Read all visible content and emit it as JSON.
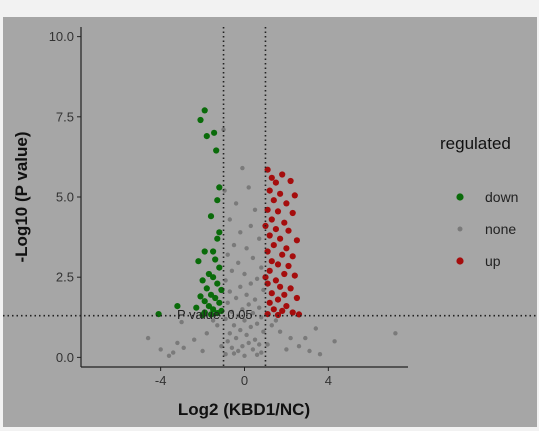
{
  "chart_data": {
    "type": "scatter",
    "title": "",
    "xlabel": "Log2 (KBD1/NC)",
    "ylabel": "-Log10 (P value)",
    "xlim": [
      -7.8,
      7.8
    ],
    "ylim": [
      -0.3,
      10.3
    ],
    "xticks": [
      -4,
      0,
      4
    ],
    "yticks": [
      0.0,
      2.5,
      5.0,
      7.5,
      10.0
    ],
    "xtick_labels": [
      "-4",
      "0",
      "4"
    ],
    "ytick_labels": [
      "0.0",
      "2.5",
      "5.0",
      "7.5",
      "10.0"
    ],
    "grid": false,
    "legend_title": "regulated",
    "legend_position": "right",
    "thresholds": {
      "x": [
        -1,
        1
      ],
      "y": 1.3
    },
    "annotation": "P value: 0.05",
    "series": [
      {
        "name": "down",
        "color": "#0a6b0a",
        "points": [
          [
            -1.9,
            7.7
          ],
          [
            -2.1,
            7.4
          ],
          [
            -1.8,
            6.9
          ],
          [
            -1.45,
            7.0
          ],
          [
            -1.35,
            6.45
          ],
          [
            -1.2,
            5.3
          ],
          [
            -1.3,
            4.9
          ],
          [
            -1.6,
            4.4
          ],
          [
            -1.2,
            3.9
          ],
          [
            -1.3,
            3.7
          ],
          [
            -1.9,
            3.3
          ],
          [
            -1.5,
            3.3
          ],
          [
            -2.2,
            3.0
          ],
          [
            -1.4,
            3.05
          ],
          [
            -1.2,
            2.8
          ],
          [
            -1.7,
            2.6
          ],
          [
            -2.0,
            2.4
          ],
          [
            -1.5,
            2.5
          ],
          [
            -1.3,
            2.3
          ],
          [
            -1.8,
            2.15
          ],
          [
            -1.1,
            2.1
          ],
          [
            -1.6,
            1.95
          ],
          [
            -2.1,
            1.9
          ],
          [
            -1.4,
            1.85
          ],
          [
            -1.9,
            1.75
          ],
          [
            -1.2,
            1.7
          ],
          [
            -1.7,
            1.6
          ],
          [
            -2.3,
            1.55
          ],
          [
            -1.5,
            1.5
          ],
          [
            -1.1,
            1.45
          ],
          [
            -1.9,
            1.4
          ],
          [
            -1.3,
            1.38
          ],
          [
            -1.6,
            1.34
          ],
          [
            -2.0,
            1.32
          ],
          [
            -3.2,
            1.6
          ],
          [
            -4.1,
            1.35
          ]
        ]
      },
      {
        "name": "none",
        "color": "#7a7a7a",
        "points": [
          [
            -0.1,
            5.9
          ],
          [
            0.2,
            5.3
          ],
          [
            -0.4,
            4.8
          ],
          [
            0.5,
            4.6
          ],
          [
            -0.7,
            4.3
          ],
          [
            0.3,
            4.1
          ],
          [
            -0.2,
            3.9
          ],
          [
            0.7,
            3.7
          ],
          [
            -0.5,
            3.5
          ],
          [
            0.1,
            3.4
          ],
          [
            -0.8,
            3.2
          ],
          [
            0.4,
            3.1
          ],
          [
            -0.3,
            2.95
          ],
          [
            0.8,
            2.8
          ],
          [
            -0.6,
            2.7
          ],
          [
            0.0,
            2.6
          ],
          [
            0.6,
            2.45
          ],
          [
            -0.9,
            2.4
          ],
          [
            0.3,
            2.3
          ],
          [
            -0.2,
            2.2
          ],
          [
            0.9,
            2.1
          ],
          [
            -0.7,
            2.05
          ],
          [
            0.1,
            1.95
          ],
          [
            -0.4,
            1.85
          ],
          [
            0.5,
            1.8
          ],
          [
            -0.8,
            1.7
          ],
          [
            0.2,
            1.65
          ],
          [
            0.7,
            1.55
          ],
          [
            -0.1,
            1.5
          ],
          [
            -0.6,
            1.42
          ],
          [
            0.4,
            1.38
          ],
          [
            -0.3,
            1.3
          ],
          [
            0.8,
            1.25
          ],
          [
            -0.9,
            1.2
          ],
          [
            0.0,
            1.15
          ],
          [
            0.6,
            1.05
          ],
          [
            -0.5,
            1.0
          ],
          [
            0.3,
            0.95
          ],
          [
            -0.2,
            0.85
          ],
          [
            0.9,
            0.8
          ],
          [
            -0.7,
            0.75
          ],
          [
            0.1,
            0.7
          ],
          [
            -0.4,
            0.6
          ],
          [
            0.5,
            0.55
          ],
          [
            -0.8,
            0.5
          ],
          [
            0.2,
            0.45
          ],
          [
            0.7,
            0.4
          ],
          [
            -0.1,
            0.35
          ],
          [
            -0.6,
            0.3
          ],
          [
            0.4,
            0.25
          ],
          [
            -0.3,
            0.2
          ],
          [
            0.8,
            0.15
          ],
          [
            -0.9,
            0.1
          ],
          [
            0.0,
            0.05
          ],
          [
            0.6,
            0.08
          ],
          [
            -0.5,
            0.12
          ],
          [
            1.3,
            1.0
          ],
          [
            1.7,
            0.8
          ],
          [
            2.2,
            0.6
          ],
          [
            2.6,
            0.35
          ],
          [
            -1.3,
            1.0
          ],
          [
            -1.8,
            0.75
          ],
          [
            -2.4,
            0.55
          ],
          [
            -2.9,
            0.3
          ],
          [
            -3.4,
            0.15
          ],
          [
            3.1,
            0.2
          ],
          [
            3.6,
            0.1
          ],
          [
            -3.6,
            0.05
          ],
          [
            -4.0,
            0.25
          ],
          [
            -3.2,
            0.45
          ],
          [
            2.9,
            0.6
          ],
          [
            1.5,
            1.15
          ],
          [
            -1.5,
            1.15
          ],
          [
            -1.1,
            0.35
          ],
          [
            1.1,
            0.4
          ],
          [
            -2.0,
            0.2
          ],
          [
            2.0,
            0.25
          ],
          [
            -0.95,
            5.2
          ],
          [
            -1.0,
            7.1
          ],
          [
            7.2,
            0.75
          ],
          [
            -3.0,
            1.1
          ],
          [
            3.4,
            0.9
          ],
          [
            4.3,
            0.5
          ],
          [
            -4.6,
            0.6
          ]
        ]
      },
      {
        "name": "up",
        "color": "#a50d0d",
        "points": [
          [
            1.1,
            5.85
          ],
          [
            1.3,
            5.6
          ],
          [
            1.8,
            5.7
          ],
          [
            1.5,
            5.45
          ],
          [
            2.2,
            5.5
          ],
          [
            1.2,
            5.2
          ],
          [
            1.7,
            5.1
          ],
          [
            2.4,
            5.05
          ],
          [
            1.4,
            4.9
          ],
          [
            2.0,
            4.8
          ],
          [
            1.1,
            4.6
          ],
          [
            1.6,
            4.55
          ],
          [
            2.3,
            4.5
          ],
          [
            1.3,
            4.3
          ],
          [
            1.9,
            4.2
          ],
          [
            1.5,
            4.0
          ],
          [
            2.1,
            3.95
          ],
          [
            1.2,
            3.8
          ],
          [
            1.7,
            3.7
          ],
          [
            2.5,
            3.65
          ],
          [
            1.4,
            3.5
          ],
          [
            2.0,
            3.4
          ],
          [
            1.1,
            3.3
          ],
          [
            1.8,
            3.2
          ],
          [
            2.3,
            3.15
          ],
          [
            1.3,
            3.0
          ],
          [
            1.6,
            2.9
          ],
          [
            2.1,
            2.85
          ],
          [
            1.2,
            2.7
          ],
          [
            1.9,
            2.6
          ],
          [
            2.4,
            2.55
          ],
          [
            1.5,
            2.4
          ],
          [
            1.1,
            2.3
          ],
          [
            1.7,
            2.2
          ],
          [
            2.2,
            2.15
          ],
          [
            1.3,
            2.0
          ],
          [
            1.9,
            1.95
          ],
          [
            1.6,
            1.8
          ],
          [
            2.5,
            1.85
          ],
          [
            1.2,
            1.7
          ],
          [
            2.0,
            1.6
          ],
          [
            1.4,
            1.5
          ],
          [
            1.8,
            1.45
          ],
          [
            2.3,
            1.4
          ],
          [
            1.1,
            1.35
          ],
          [
            1.6,
            1.32
          ],
          [
            2.6,
            1.34
          ],
          [
            1.0,
            4.1
          ],
          [
            1.0,
            2.5
          ]
        ]
      }
    ]
  }
}
